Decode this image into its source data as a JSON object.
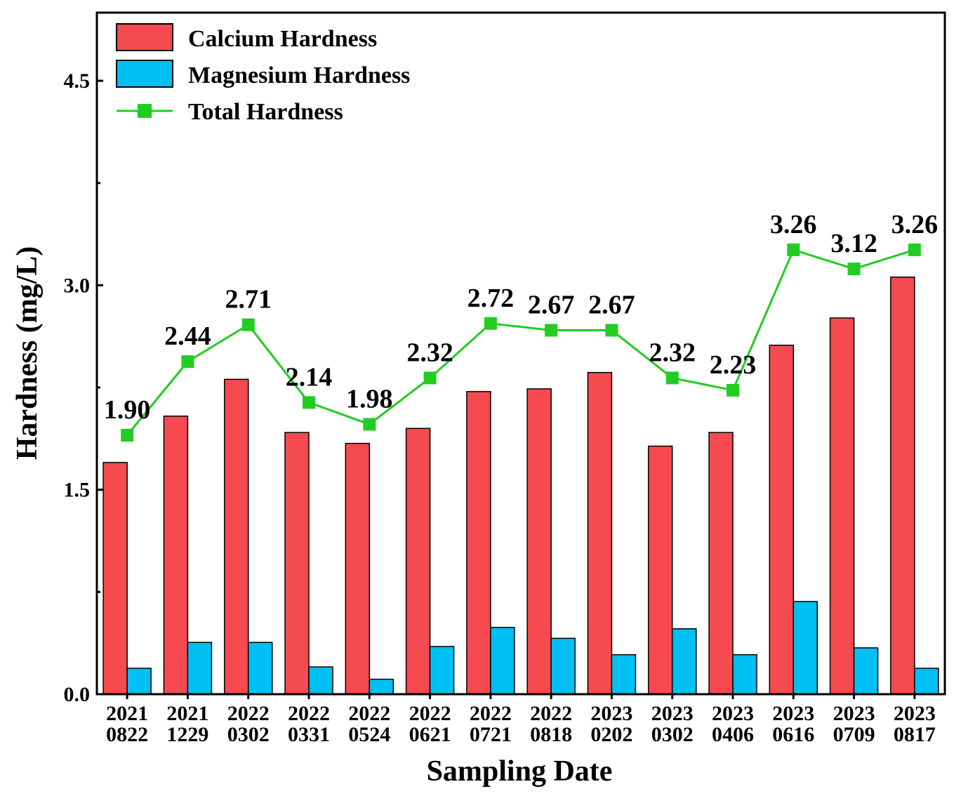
{
  "chart_data": {
    "type": "bar",
    "title": "",
    "xlabel": "Sampling Date",
    "ylabel": "Hardness (mg/L)",
    "ylim": [
      0,
      5.0
    ],
    "yticks": [
      "0.0",
      "1.5",
      "3.0",
      "4.5"
    ],
    "categories": [
      [
        "2021",
        "0822"
      ],
      [
        "2021",
        "1229"
      ],
      [
        "2022",
        "0302"
      ],
      [
        "2022",
        "0331"
      ],
      [
        "2022",
        "0524"
      ],
      [
        "2022",
        "0621"
      ],
      [
        "2022",
        "0721"
      ],
      [
        "2022",
        "0818"
      ],
      [
        "2023",
        "0202"
      ],
      [
        "2023",
        "0302"
      ],
      [
        "2023",
        "0406"
      ],
      [
        "2023",
        "0616"
      ],
      [
        "2023",
        "0709"
      ],
      [
        "2023",
        "0817"
      ]
    ],
    "series": [
      {
        "name": "Calcium Hardness",
        "type": "bar",
        "color": "#f54a4f",
        "values": [
          1.7,
          2.04,
          2.31,
          1.92,
          1.84,
          1.95,
          2.22,
          2.24,
          2.36,
          1.82,
          1.92,
          2.56,
          2.76,
          3.06
        ]
      },
      {
        "name": "Magnesium Hardness",
        "type": "bar",
        "color": "#00bff2",
        "values": [
          0.19,
          0.38,
          0.38,
          0.2,
          0.11,
          0.35,
          0.49,
          0.41,
          0.29,
          0.48,
          0.29,
          0.68,
          0.34,
          0.19
        ]
      },
      {
        "name": "Total Hardness",
        "type": "line",
        "color": "#22cc22",
        "values": [
          1.9,
          2.44,
          2.71,
          2.14,
          1.98,
          2.32,
          2.72,
          2.67,
          2.67,
          2.32,
          2.23,
          3.26,
          3.12,
          3.26
        ],
        "labels": [
          "1.90",
          "2.44",
          "2.71",
          "2.14",
          "1.98",
          "2.32",
          "2.72",
          "2.67",
          "2.67",
          "2.32",
          "2.23",
          "3.26",
          "3.12",
          "3.26"
        ]
      }
    ],
    "legend_position": "top-left"
  }
}
